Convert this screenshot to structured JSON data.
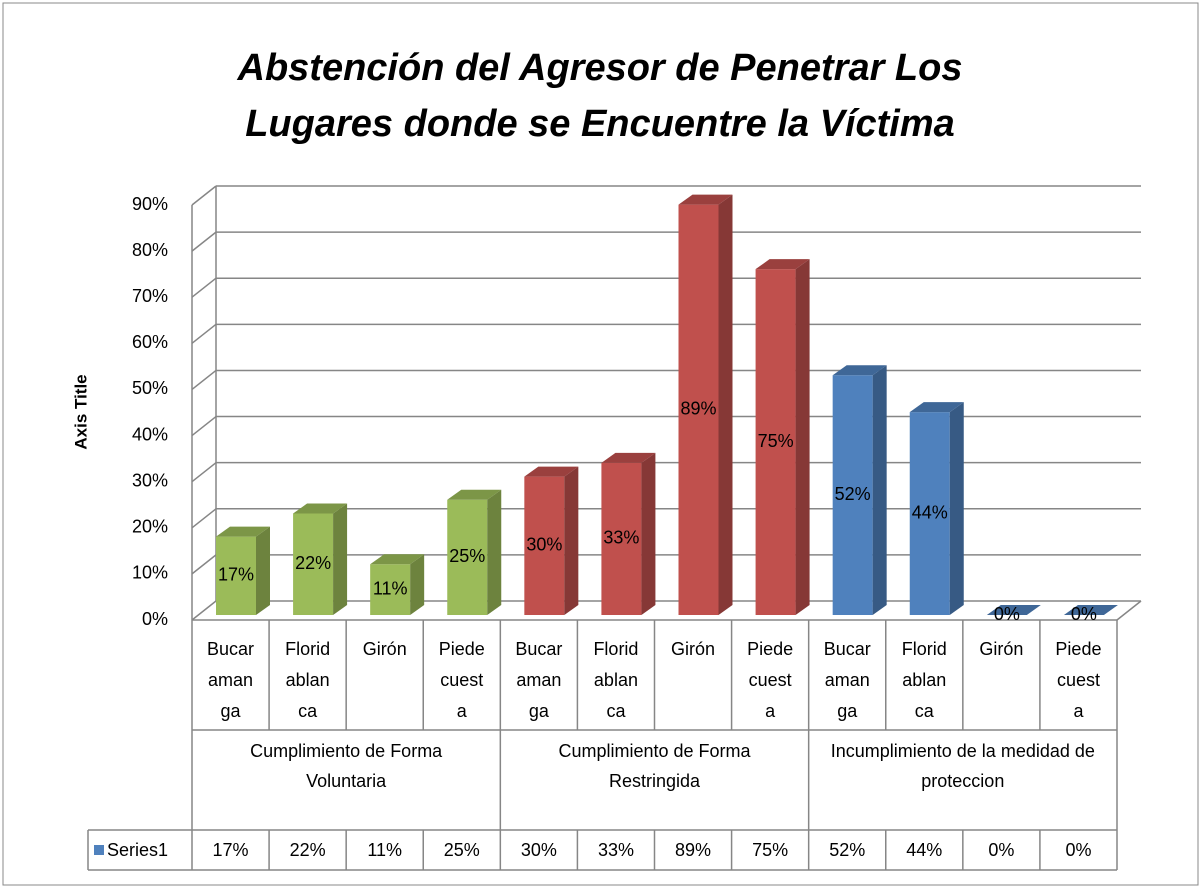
{
  "chart_data": {
    "type": "bar",
    "title": "Abstención del Agresor de Penetrar Los Lugares donde se Encuentre la Víctima",
    "y_label": "Axis Title",
    "categories": [
      "Bucaramanga",
      "Floridablanca",
      "Girón",
      "Piedecuesta",
      "Bucaramanga",
      "Floridablanca",
      "Girón",
      "Piedecuesta",
      "Bucaramanga",
      "Floridablanca",
      "Girón",
      "Piedecuesta"
    ],
    "groups": [
      "Cumplimiento de Forma Voluntaria",
      "Cumplimiento de Forma Restringida",
      "Incumplimiento de la medidad de proteccion"
    ],
    "group_colors": [
      "#9bbb59",
      "#c0504d",
      "#4f81bd"
    ],
    "series": [
      {
        "name": "Series1",
        "color": "#4f81bd",
        "values": [
          17,
          22,
          11,
          25,
          30,
          33,
          89,
          75,
          52,
          44,
          0,
          0
        ],
        "value_labels": [
          "17%",
          "22%",
          "11%",
          "25%",
          "30%",
          "33%",
          "89%",
          "75%",
          "52%",
          "44%",
          "0%",
          "0%"
        ]
      }
    ],
    "ylim": [
      0,
      90
    ],
    "yticks": [
      {
        "value": 0,
        "label": "0%"
      },
      {
        "value": 10,
        "label": "10%"
      },
      {
        "value": 20,
        "label": "20%"
      },
      {
        "value": 30,
        "label": "30%"
      },
      {
        "value": 40,
        "label": "40%"
      },
      {
        "value": 50,
        "label": "50%"
      },
      {
        "value": 60,
        "label": "60%"
      },
      {
        "value": 70,
        "label": "70%"
      },
      {
        "value": 80,
        "label": "80%"
      },
      {
        "value": 90,
        "label": "90%"
      }
    ],
    "grid": true,
    "data_table": true
  }
}
